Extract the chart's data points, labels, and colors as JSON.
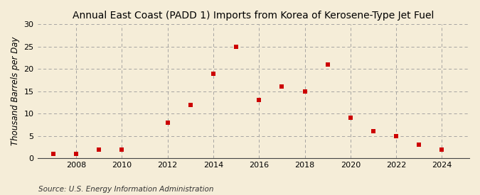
{
  "title": "Annual East Coast (PADD 1) Imports from Korea of Kerosene-Type Jet Fuel",
  "ylabel": "Thousand Barrels per Day",
  "source": "Source: U.S. Energy Information Administration",
  "years": [
    2007,
    2008,
    2009,
    2010,
    2012,
    2013,
    2014,
    2015,
    2016,
    2017,
    2018,
    2019,
    2020,
    2021,
    2022,
    2023,
    2024
  ],
  "values": [
    1,
    1,
    2,
    2,
    8,
    12,
    19,
    25,
    13,
    16,
    15,
    21,
    9,
    6,
    5,
    3,
    2
  ],
  "marker_color": "#cc0000",
  "background_color": "#f5edd8",
  "grid_color": "#999999",
  "ylim": [
    0,
    30
  ],
  "yticks": [
    0,
    5,
    10,
    15,
    20,
    25,
    30
  ],
  "xticks": [
    2008,
    2010,
    2012,
    2014,
    2016,
    2018,
    2020,
    2022,
    2024
  ],
  "xlim": [
    2006.3,
    2025.2
  ],
  "title_fontsize": 10,
  "label_fontsize": 8.5,
  "source_fontsize": 7.5,
  "tick_fontsize": 8
}
